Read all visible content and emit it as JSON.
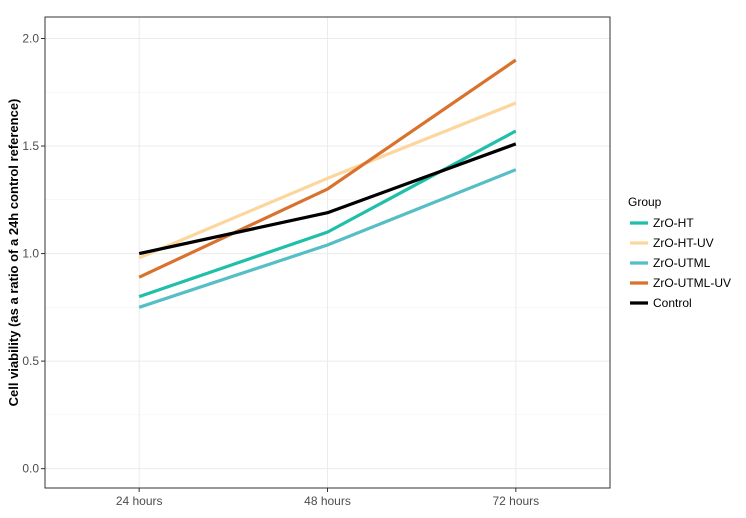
{
  "chart_data": {
    "type": "line",
    "title": "",
    "xlabel": "",
    "ylabel": "Cell viability (as a ratio of a 24h control reference)",
    "categories": [
      "24 hours",
      "48 hours",
      "72 hours"
    ],
    "ylim": [
      -0.09,
      2.1
    ],
    "yticks": [
      0.0,
      0.5,
      1.0,
      1.5,
      2.0
    ],
    "ytick_labels": [
      "0.0",
      "0.5",
      "1.0",
      "1.5",
      "2.0"
    ],
    "grid": true,
    "legend_position": "right",
    "legend_title": "Group",
    "series": [
      {
        "name": "ZrO-HT",
        "color": "#1fbfaa",
        "values": [
          0.8,
          1.1,
          1.57
        ]
      },
      {
        "name": "ZrO-HT-UV",
        "color": "#fcd69c",
        "values": [
          0.98,
          1.35,
          1.7
        ]
      },
      {
        "name": "ZrO-UTML",
        "color": "#55bec6",
        "values": [
          0.75,
          1.04,
          1.39
        ]
      },
      {
        "name": "ZrO-UTML-UV",
        "color": "#d8722c",
        "values": [
          0.89,
          1.3,
          1.9
        ]
      },
      {
        "name": "Control",
        "color": "#000000",
        "values": [
          1.0,
          1.19,
          1.51
        ]
      }
    ]
  }
}
